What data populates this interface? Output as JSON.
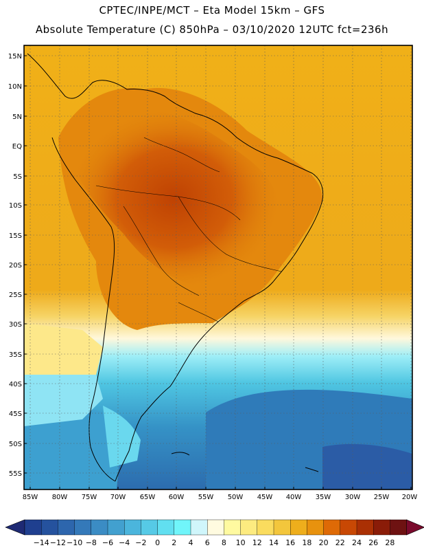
{
  "header": {
    "line1": "CPTEC/INPE/MCT –   Eta Model 15km – GFS",
    "line2": "Absolute Temperature (C) 850hPa – 03/10/2020 12UTC fct=236h"
  },
  "axes": {
    "lat_labels": [
      "15N",
      "10N",
      "5N",
      "EQ",
      "5S",
      "10S",
      "15S",
      "20S",
      "25S",
      "30S",
      "35S",
      "40S",
      "45S",
      "50S",
      "55S"
    ],
    "lon_labels": [
      "85W",
      "80W",
      "75W",
      "70W",
      "65W",
      "60W",
      "55W",
      "50W",
      "45W",
      "40W",
      "35W",
      "30W",
      "25W",
      "20W"
    ]
  },
  "colorbar": {
    "labels": [
      "-14",
      "-12",
      "-10",
      "-8",
      "-6",
      "-4",
      "-2",
      "0",
      "2",
      "4",
      "6",
      "8",
      "10",
      "12",
      "14",
      "16",
      "18",
      "20",
      "22",
      "24",
      "26",
      "28"
    ],
    "colors": [
      "#1f3f8f",
      "#25529e",
      "#2d66ad",
      "#3479b9",
      "#3b8cc4",
      "#42a0cf",
      "#4bb5dc",
      "#56cae6",
      "#61dff0",
      "#70f5fa",
      "#d0f6fb",
      "#fffbe0",
      "#fffaa0",
      "#fdeb80",
      "#fadc5e",
      "#f3c63c",
      "#eeae1c",
      "#e8920e",
      "#de6a06",
      "#c84804",
      "#aa3004",
      "#8a1c08",
      "#6e1212"
    ],
    "under_color": "#1e2a74",
    "over_color": "#7a0a2c"
  }
}
